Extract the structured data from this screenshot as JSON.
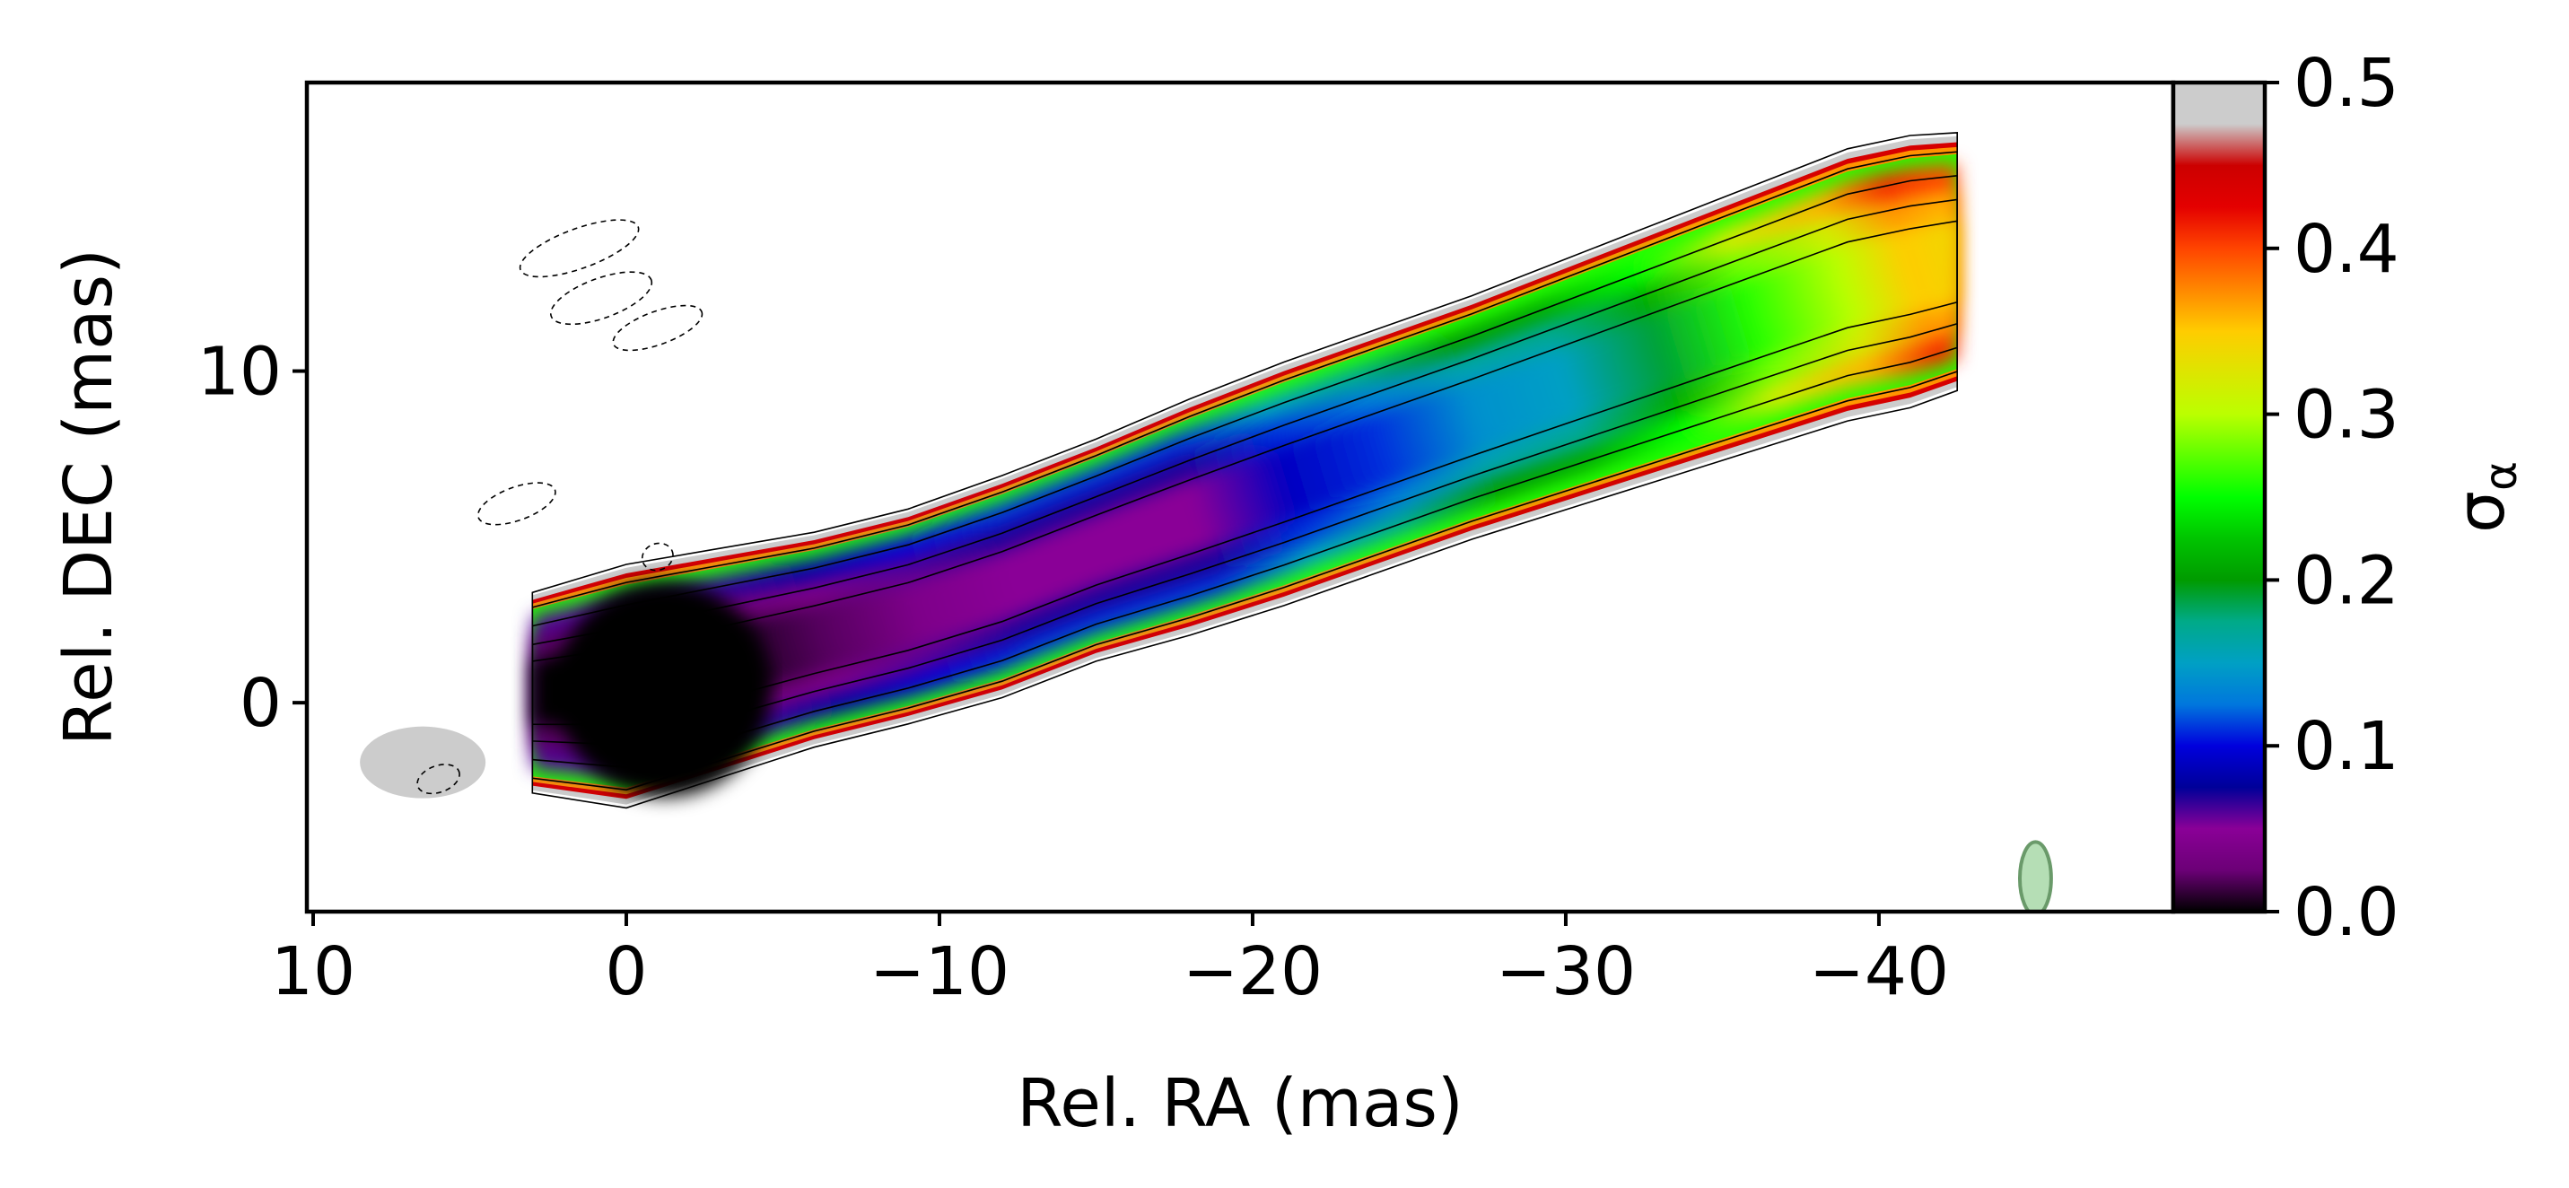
{
  "chart_data": {
    "type": "heatmap",
    "title": "",
    "xlabel": "Rel. RA (mas)",
    "ylabel": "Rel. DEC (mas)",
    "xlim": [
      10.2,
      -49.4
    ],
    "ylim": [
      -6.3,
      18.7
    ],
    "x_ticks": [
      {
        "value": 10,
        "label": "10"
      },
      {
        "value": 0,
        "label": "0"
      },
      {
        "value": -10,
        "label": "−10"
      },
      {
        "value": -20,
        "label": "−20"
      },
      {
        "value": -30,
        "label": "−30"
      },
      {
        "value": -40,
        "label": "−40"
      }
    ],
    "y_ticks": [
      {
        "value": 0,
        "label": "0"
      },
      {
        "value": 10,
        "label": "10"
      }
    ],
    "colorbar": {
      "label_main": "σ",
      "label_sub": "α",
      "range": [
        0.0,
        0.5
      ],
      "colormap": "nipy_spectral",
      "ticks": [
        {
          "value": 0.0,
          "label": "0.0"
        },
        {
          "value": 0.1,
          "label": "0.1"
        },
        {
          "value": 0.2,
          "label": "0.2"
        },
        {
          "value": 0.3,
          "label": "0.3"
        },
        {
          "value": 0.4,
          "label": "0.4"
        },
        {
          "value": 0.5,
          "label": "0.5"
        }
      ],
      "stops": [
        {
          "v": 0.0,
          "c": "#000000"
        },
        {
          "v": 0.05,
          "c": "#6c0077"
        },
        {
          "v": 0.1,
          "c": "#8a0097"
        },
        {
          "v": 0.15,
          "c": "#000099"
        },
        {
          "v": 0.2,
          "c": "#0000dd"
        },
        {
          "v": 0.25,
          "c": "#0077dd"
        },
        {
          "v": 0.3,
          "c": "#00a0c4"
        },
        {
          "v": 0.35,
          "c": "#00aa88"
        },
        {
          "v": 0.4,
          "c": "#009b00"
        },
        {
          "v": 0.45,
          "c": "#00c400"
        },
        {
          "v": 0.5,
          "c": "#00ff00"
        },
        {
          "v": 0.6,
          "c": "#bbff00"
        },
        {
          "v": 0.7,
          "c": "#ffcc00"
        },
        {
          "v": 0.8,
          "c": "#ff4400"
        },
        {
          "v": 0.85,
          "c": "#e40000"
        },
        {
          "v": 0.9,
          "c": "#cc0000"
        },
        {
          "v": 0.95,
          "c": "#cccccc"
        },
        {
          "v": 1.0,
          "c": "#cccccc"
        }
      ]
    },
    "jet_profile": {
      "x": [
        3,
        0,
        -3,
        -6,
        -9,
        -12,
        -15,
        -18,
        -21,
        -24,
        -27,
        -30,
        -33,
        -36,
        -39,
        -41,
        -42.5
      ],
      "y_center": [
        0.3,
        0.5,
        1.2,
        1.9,
        2.6,
        3.5,
        4.6,
        5.6,
        6.6,
        7.6,
        8.6,
        9.6,
        10.6,
        11.6,
        12.6,
        13.0,
        13.3
      ],
      "half_width": [
        2.8,
        3.4,
        3.2,
        3.0,
        3.0,
        3.1,
        3.1,
        3.3,
        3.4,
        3.4,
        3.4,
        3.5,
        3.6,
        3.7,
        3.8,
        3.8,
        3.6
      ],
      "sigma_core": [
        0.0,
        0.0,
        0.005,
        0.02,
        0.04,
        0.05,
        0.05,
        0.05,
        0.09,
        0.11,
        0.14,
        0.15,
        0.19,
        0.26,
        0.3,
        0.35,
        0.34
      ]
    },
    "beam": {
      "x": -45.0,
      "y": -5.3,
      "major_mas": 2.2,
      "minor_mas": 1.0,
      "color": "#a8d8a8"
    }
  }
}
